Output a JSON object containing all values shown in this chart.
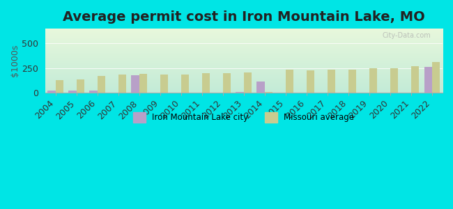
{
  "title": "Average permit cost in Iron Mountain Lake, MO",
  "ylabel": "$1000s",
  "years": [
    2004,
    2005,
    2006,
    2007,
    2008,
    2009,
    2010,
    2011,
    2012,
    2013,
    2014,
    2015,
    2016,
    2017,
    2018,
    2019,
    2020,
    2021,
    2022
  ],
  "city_values": [
    20,
    20,
    20,
    0,
    175,
    0,
    0,
    0,
    0,
    5,
    115,
    0,
    0,
    0,
    0,
    0,
    0,
    0,
    260
  ],
  "mo_values": [
    130,
    135,
    170,
    180,
    190,
    180,
    180,
    195,
    195,
    205,
    10,
    230,
    225,
    230,
    235,
    245,
    250,
    265,
    310
  ],
  "city_color": "#b8a0c8",
  "mo_color": "#c8cc90",
  "outer_bg": "#00e5e5",
  "ylim": [
    0,
    650
  ],
  "yticks": [
    0,
    250,
    500
  ],
  "bar_width": 0.38,
  "title_fontsize": 14,
  "axis_fontsize": 9,
  "legend_labels": [
    "Iron Mountain Lake city",
    "Missouri average"
  ],
  "watermark": "City-Data.com"
}
